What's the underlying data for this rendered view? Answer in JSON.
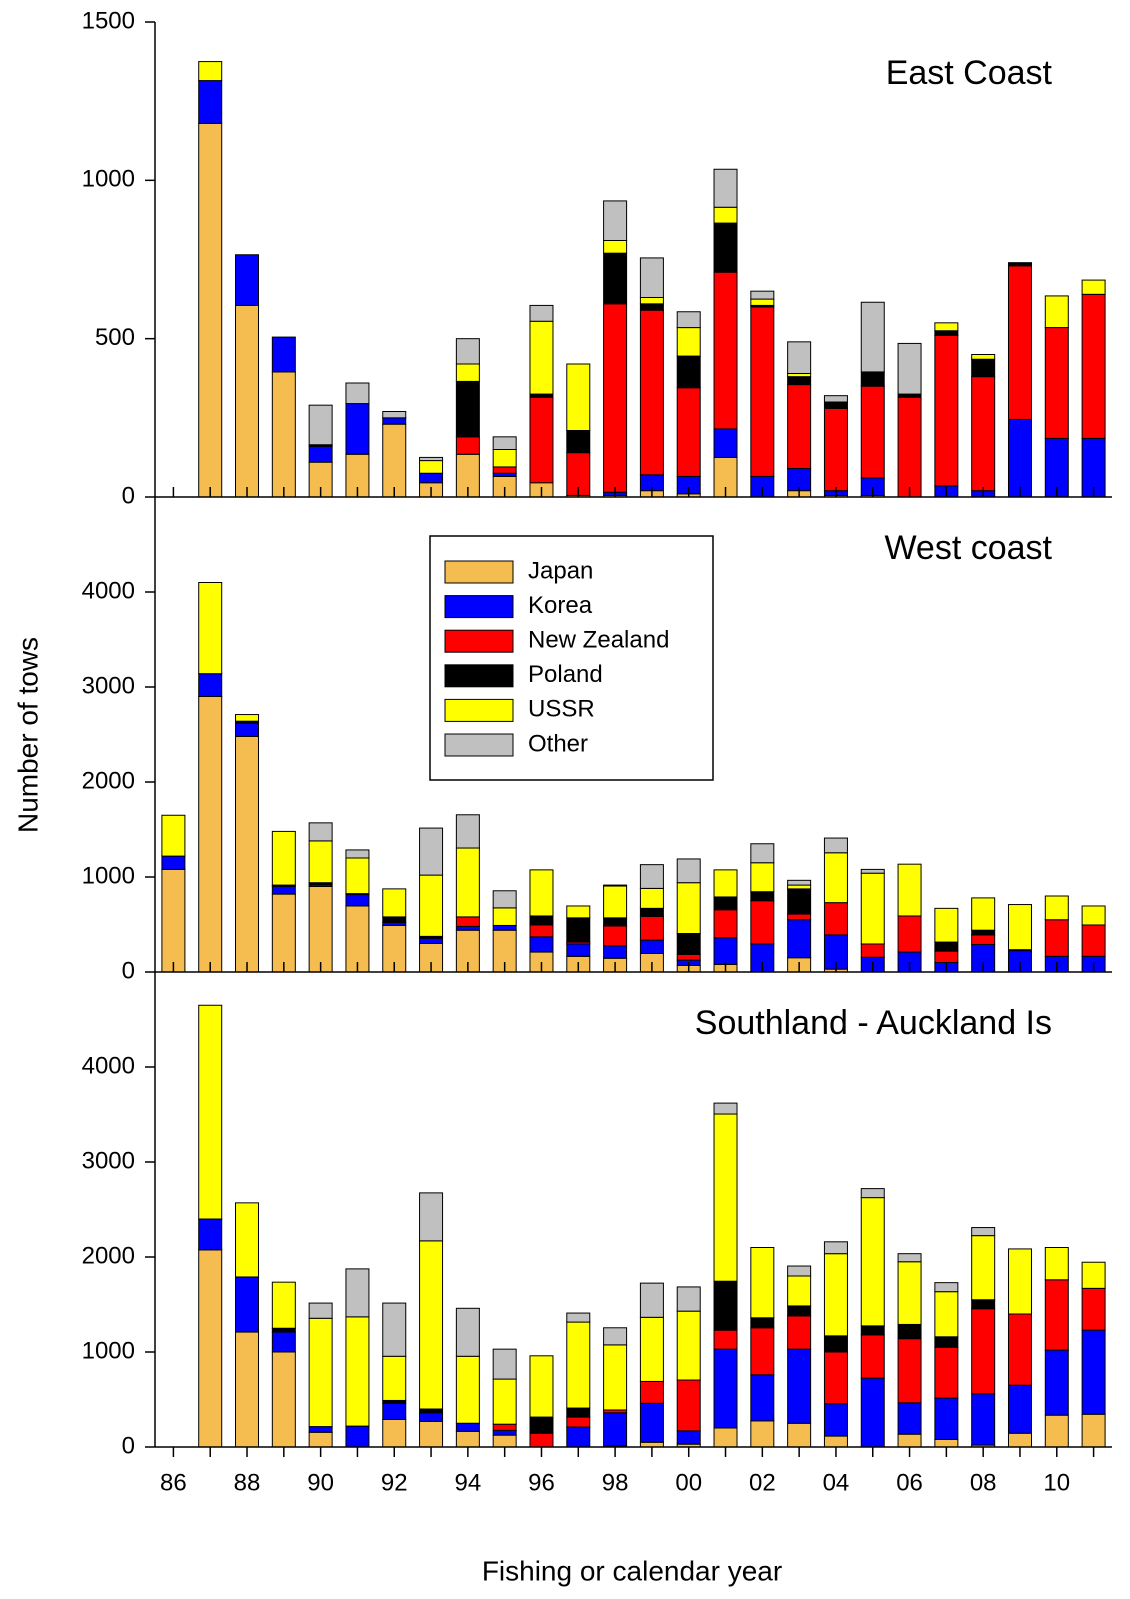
{
  "chart_data": [
    {
      "type": "bar",
      "stacked": true,
      "title": "East Coast",
      "ylim": [
        0,
        1500
      ],
      "yticks": [
        0,
        500,
        1000,
        1500
      ],
      "series": [
        {
          "values": [
            0,
            1180,
            605,
            395,
            110,
            135,
            230,
            45,
            135,
            65,
            45,
            5,
            5,
            20,
            10,
            125,
            0,
            20,
            5,
            5,
            0,
            0,
            0,
            0,
            0,
            0
          ]
        },
        {
          "values": [
            0,
            135,
            160,
            110,
            50,
            160,
            20,
            30,
            0,
            10,
            0,
            0,
            10,
            50,
            55,
            90,
            65,
            70,
            15,
            55,
            0,
            35,
            20,
            245,
            185,
            185
          ]
        },
        {
          "values": [
            0,
            0,
            0,
            0,
            0,
            0,
            0,
            0,
            55,
            20,
            270,
            135,
            595,
            520,
            280,
            495,
            535,
            265,
            260,
            290,
            315,
            475,
            360,
            485,
            350,
            455
          ]
        },
        {
          "values": [
            0,
            0,
            0,
            0,
            5,
            0,
            0,
            0,
            175,
            0,
            10,
            70,
            160,
            20,
            100,
            155,
            5,
            25,
            20,
            45,
            10,
            15,
            55,
            10,
            0,
            0
          ]
        },
        {
          "values": [
            0,
            60,
            0,
            0,
            0,
            0,
            0,
            40,
            55,
            55,
            230,
            210,
            40,
            20,
            90,
            50,
            20,
            10,
            0,
            0,
            0,
            25,
            15,
            0,
            100,
            45
          ]
        },
        {
          "values": [
            0,
            0,
            0,
            0,
            125,
            65,
            20,
            10,
            80,
            40,
            50,
            0,
            125,
            125,
            50,
            120,
            25,
            100,
            20,
            220,
            160,
            0,
            0,
            0,
            0,
            0
          ]
        }
      ]
    },
    {
      "type": "bar",
      "stacked": true,
      "title": "West coast",
      "ylabel": "Number of tows",
      "ylim": [
        0,
        5000
      ],
      "yticks": [
        0,
        1000,
        2000,
        3000,
        4000
      ],
      "legend": "upper-center",
      "series": [
        {
          "name": "Japan",
          "color": "#f5bd50",
          "values": [
            1080,
            2900,
            2480,
            820,
            900,
            695,
            490,
            300,
            440,
            440,
            210,
            165,
            145,
            195,
            70,
            80,
            0,
            150,
            30,
            0,
            0,
            0,
            0,
            0,
            0,
            0
          ]
        },
        {
          "name": "Korea",
          "color": "#0000ff",
          "values": [
            140,
            240,
            140,
            80,
            20,
            120,
            30,
            55,
            40,
            50,
            160,
            130,
            130,
            140,
            55,
            280,
            295,
            400,
            360,
            155,
            210,
            100,
            290,
            225,
            165,
            165
          ]
        },
        {
          "name": "New Zealand",
          "color": "#ff0000",
          "values": [
            0,
            0,
            0,
            0,
            0,
            0,
            0,
            0,
            100,
            0,
            125,
            20,
            210,
            250,
            60,
            295,
            455,
            60,
            340,
            140,
            380,
            120,
            100,
            10,
            385,
            330
          ]
        },
        {
          "name": "Poland",
          "color": "#000000",
          "values": [
            0,
            0,
            20,
            15,
            20,
            10,
            60,
            20,
            0,
            0,
            95,
            255,
            85,
            85,
            220,
            135,
            95,
            265,
            0,
            0,
            0,
            95,
            50,
            0,
            0,
            0
          ]
        },
        {
          "name": "USSR",
          "color": "#ffff00",
          "values": [
            430,
            960,
            70,
            565,
            440,
            375,
            295,
            645,
            725,
            185,
            485,
            125,
            335,
            210,
            535,
            285,
            305,
            40,
            525,
            745,
            545,
            355,
            340,
            475,
            250,
            200
          ]
        },
        {
          "name": "Other",
          "color": "#c0c0c0",
          "values": [
            0,
            0,
            0,
            0,
            190,
            85,
            0,
            495,
            350,
            180,
            0,
            0,
            10,
            250,
            250,
            0,
            200,
            50,
            155,
            40,
            0,
            0,
            0,
            0,
            0,
            0
          ]
        }
      ]
    },
    {
      "type": "bar",
      "stacked": true,
      "title": "Southland - Auckland Is",
      "xlabel": "Fishing or calendar year",
      "ylim": [
        0,
        5000
      ],
      "yticks": [
        0,
        1000,
        2000,
        3000,
        4000
      ],
      "categories": [
        "86",
        null,
        "88",
        null,
        "90",
        null,
        "92",
        null,
        "94",
        null,
        "96",
        null,
        "98",
        null,
        "00",
        null,
        "02",
        null,
        "04",
        null,
        "06",
        null,
        "08",
        null,
        "10",
        null
      ],
      "series": [
        {
          "values": [
            0,
            2075,
            1210,
            1000,
            155,
            0,
            290,
            270,
            165,
            125,
            0,
            0,
            10,
            50,
            30,
            200,
            275,
            250,
            115,
            0,
            135,
            80,
            20,
            145,
            335,
            345
          ]
        },
        {
          "values": [
            0,
            325,
            580,
            210,
            60,
            220,
            170,
            90,
            85,
            50,
            0,
            210,
            350,
            410,
            140,
            830,
            485,
            780,
            340,
            725,
            330,
            435,
            540,
            505,
            685,
            885
          ]
        },
        {
          "values": [
            0,
            0,
            0,
            0,
            0,
            0,
            0,
            0,
            0,
            65,
            145,
            105,
            30,
            230,
            535,
            200,
            495,
            350,
            545,
            455,
            675,
            535,
            895,
            750,
            740,
            440
          ]
        },
        {
          "values": [
            0,
            0,
            0,
            40,
            0,
            0,
            30,
            40,
            0,
            0,
            170,
            95,
            0,
            0,
            0,
            515,
            105,
            105,
            170,
            95,
            150,
            110,
            95,
            0,
            0,
            0
          ]
        },
        {
          "values": [
            0,
            2250,
            780,
            485,
            1140,
            1150,
            465,
            1770,
            705,
            475,
            645,
            905,
            685,
            675,
            725,
            1760,
            740,
            315,
            865,
            1350,
            660,
            475,
            675,
            685,
            340,
            275
          ]
        },
        {
          "values": [
            0,
            0,
            0,
            0,
            160,
            505,
            560,
            505,
            505,
            315,
            0,
            95,
            180,
            360,
            255,
            115,
            0,
            105,
            125,
            95,
            85,
            95,
            85,
            0,
            0,
            0
          ]
        }
      ]
    }
  ]
}
